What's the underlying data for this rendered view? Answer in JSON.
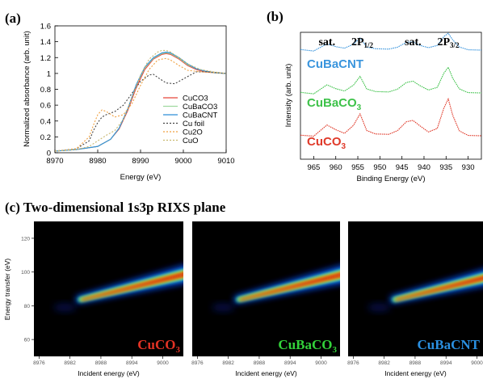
{
  "panel_labels": {
    "a": "(a)",
    "b": "(b)",
    "c": "(c) Two-dimensional 1s3p RIXS plane"
  },
  "chart_data": [
    {
      "id": "xanes",
      "type": "line",
      "xlabel": "Energy (eV)",
      "ylabel": "Normalized absorbance (arb. unit)",
      "xlim": [
        8970,
        9010
      ],
      "ylim": [
        0,
        1.6
      ],
      "xticks": [
        8970,
        8980,
        8990,
        9000,
        9010
      ],
      "yticks": [
        0,
        0.2,
        0.4,
        0.6,
        0.8,
        1,
        1.2,
        1.4,
        1.6
      ],
      "legend_position": "bottom-right",
      "series": [
        {
          "name": "CuCO3",
          "color": "#e8463a",
          "dash": "",
          "x": [
            8970,
            8975,
            8980,
            8983,
            8985,
            8987,
            8989,
            8991,
            8993,
            8995,
            8996,
            8997,
            8999,
            9001,
            9003,
            9005,
            9007,
            9010
          ],
          "y": [
            0.02,
            0.04,
            0.08,
            0.17,
            0.3,
            0.53,
            0.82,
            1.05,
            1.18,
            1.24,
            1.25,
            1.24,
            1.18,
            1.1,
            1.05,
            1.02,
            1.01,
            1.0
          ]
        },
        {
          "name": "CuBaCO3",
          "color": "#9fd89f",
          "dash": "",
          "x": [
            8970,
            8975,
            8980,
            8983,
            8985,
            8987,
            8989,
            8991,
            8993,
            8995,
            8996,
            8997,
            8999,
            9001,
            9003,
            9005,
            9007,
            9010
          ],
          "y": [
            0.02,
            0.04,
            0.08,
            0.17,
            0.31,
            0.55,
            0.85,
            1.07,
            1.19,
            1.25,
            1.26,
            1.25,
            1.19,
            1.11,
            1.06,
            1.03,
            1.01,
            1.0
          ]
        },
        {
          "name": "CuBaCNT",
          "color": "#2f8fd8",
          "dash": "",
          "x": [
            8970,
            8975,
            8980,
            8983,
            8985,
            8987,
            8989,
            8991,
            8993,
            8995,
            8996,
            8997,
            8999,
            9001,
            9003,
            9005,
            9007,
            9010
          ],
          "y": [
            0.02,
            0.04,
            0.08,
            0.17,
            0.31,
            0.55,
            0.86,
            1.08,
            1.2,
            1.26,
            1.27,
            1.26,
            1.2,
            1.12,
            1.06,
            1.03,
            1.01,
            1.0
          ]
        },
        {
          "name": "Cu foil",
          "color": "#444444",
          "dash": "2,2",
          "x": [
            8970,
            8975,
            8978,
            8979,
            8980,
            8981,
            8982,
            8984,
            8986,
            8988,
            8990,
            8992,
            8993,
            8994,
            8996,
            8998,
            9000,
            9003,
            9006,
            9010
          ],
          "y": [
            0.02,
            0.05,
            0.15,
            0.28,
            0.38,
            0.45,
            0.48,
            0.52,
            0.6,
            0.75,
            0.9,
            0.98,
            0.99,
            0.95,
            0.88,
            0.87,
            0.93,
            1.02,
            1.02,
            1.0
          ]
        },
        {
          "name": "Cu2O",
          "color": "#f0a040",
          "dash": "2,2",
          "x": [
            8970,
            8975,
            8978,
            8979,
            8980,
            8981,
            8982,
            8984,
            8986,
            8988,
            8990,
            8992,
            8994,
            8996,
            8997,
            8999,
            9001,
            9004,
            9007,
            9010
          ],
          "y": [
            0.02,
            0.05,
            0.2,
            0.35,
            0.48,
            0.54,
            0.52,
            0.45,
            0.48,
            0.62,
            0.85,
            1.05,
            1.17,
            1.19,
            1.17,
            1.1,
            1.04,
            1.02,
            1.01,
            1.0
          ]
        },
        {
          "name": "CuO",
          "color": "#c8b870",
          "dash": "2,2",
          "x": [
            8970,
            8975,
            8978,
            8980,
            8982,
            8984,
            8986,
            8988,
            8990,
            8992,
            8994,
            8995,
            8996,
            8997,
            8999,
            9001,
            9004,
            9007,
            9010
          ],
          "y": [
            0.02,
            0.04,
            0.08,
            0.15,
            0.22,
            0.28,
            0.42,
            0.7,
            0.98,
            1.18,
            1.27,
            1.29,
            1.29,
            1.27,
            1.2,
            1.12,
            1.05,
            1.02,
            1.0
          ]
        }
      ]
    },
    {
      "id": "xps",
      "type": "line",
      "xlabel": "Binding Energy (eV)",
      "ylabel": "Intensity (arb. unit)",
      "xlim": [
        968,
        927
      ],
      "xticks": [
        965,
        960,
        955,
        950,
        945,
        940,
        935,
        930
      ],
      "annotations": [
        {
          "text": "sat.",
          "x": 962
        },
        {
          "text": "2P",
          "sub": "1/2",
          "x": 954
        },
        {
          "text": "sat.",
          "x": 942.5
        },
        {
          "text": "2P",
          "sub": "3/2",
          "x": 934.5
        }
      ],
      "series": [
        {
          "name": "CuBaCNT",
          "color": "#3a95dd",
          "sub": "",
          "offset": 2.0,
          "x": [
            968,
            965,
            962,
            960,
            958,
            956,
            954.5,
            953,
            951,
            948,
            946,
            944,
            942.5,
            941,
            939,
            937,
            935.5,
            934.5,
            933.5,
            932,
            930,
            927
          ],
          "y": [
            0.0,
            0.01,
            0.12,
            0.08,
            0.04,
            0.12,
            0.28,
            0.1,
            0.02,
            0.02,
            0.07,
            0.16,
            0.2,
            0.14,
            0.05,
            0.08,
            0.28,
            0.35,
            0.22,
            0.06,
            0.02,
            0.0
          ]
        },
        {
          "name": "CuBaCO",
          "color": "#3ec24a",
          "sub": "3",
          "offset": 1.0,
          "x": [
            968,
            965,
            962,
            960,
            958,
            956,
            954.5,
            953,
            951,
            948,
            946,
            944,
            942.5,
            941,
            939,
            937,
            935.5,
            934.5,
            933.5,
            932,
            930,
            927
          ],
          "y": [
            0.0,
            0.01,
            0.16,
            0.1,
            0.04,
            0.16,
            0.38,
            0.12,
            0.02,
            0.02,
            0.09,
            0.22,
            0.28,
            0.2,
            0.06,
            0.1,
            0.42,
            0.55,
            0.32,
            0.08,
            0.02,
            0.0
          ]
        },
        {
          "name": "CuCO",
          "color": "#e03a2a",
          "sub": "3",
          "offset": 0.0,
          "x": [
            968,
            965,
            962,
            960,
            958,
            956,
            954.5,
            953,
            951,
            948,
            946,
            944,
            942.5,
            941,
            939,
            937,
            935.5,
            934.5,
            933.5,
            932,
            930,
            927
          ],
          "y": [
            0.0,
            0.02,
            0.22,
            0.14,
            0.05,
            0.22,
            0.5,
            0.15,
            0.03,
            0.03,
            0.12,
            0.3,
            0.36,
            0.26,
            0.08,
            0.14,
            0.6,
            0.8,
            0.45,
            0.1,
            0.02,
            0.0
          ]
        }
      ]
    },
    {
      "id": "rixs",
      "type": "heatmap",
      "xlabel": "Incident energy (eV)",
      "ylabel": "Energy transfer (eV)",
      "xticks": [
        8976,
        8982,
        8988,
        8994,
        9000
      ],
      "xlim": [
        8975,
        9004
      ],
      "yticks": [
        60,
        80,
        100,
        120
      ],
      "ylim": [
        50,
        130
      ],
      "panels": [
        {
          "name": "CuCO",
          "sub": "3",
          "color": "#e23224"
        },
        {
          "name": "CuBaCO",
          "sub": "3",
          "color": "#33d23a"
        },
        {
          "name": "CuBaCNT",
          "sub": "",
          "color": "#2a8fe0"
        }
      ]
    }
  ]
}
